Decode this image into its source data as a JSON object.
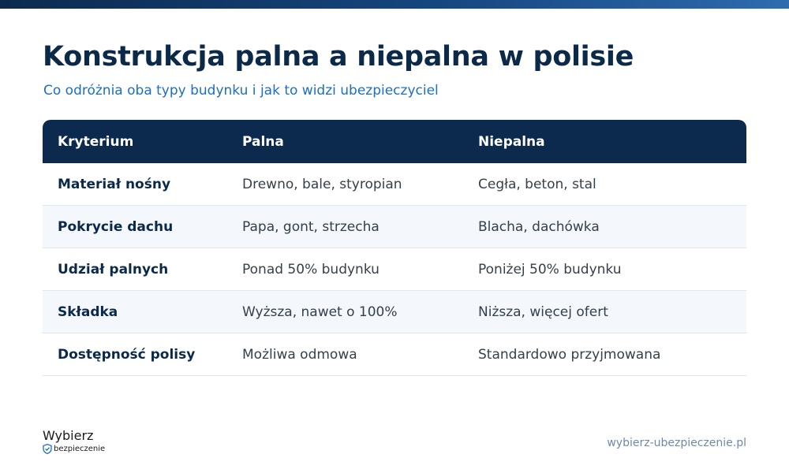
{
  "title": "Konstrukcja palna a niepalna w polisie",
  "subtitle": "Co odróżnia oba typy budynku i jak to widzi ubezpieczyciel",
  "table": {
    "headers": [
      "Kryterium",
      "Palna",
      "Niepalna"
    ],
    "rows": [
      [
        "Materiał nośny",
        "Drewno, bale, styropian",
        "Cegła, beton, stal"
      ],
      [
        "Pokrycie dachu",
        "Papa, gont, strzecha",
        "Blacha, dachówka"
      ],
      [
        "Udział palnych",
        "Ponad 50% budynku",
        "Poniżej 50% budynku"
      ],
      [
        "Składka",
        "Wyższa, nawet o 100%",
        "Niższa, więcej ofert"
      ],
      [
        "Dostępność polisy",
        "Możliwa odmowa",
        "Standardowo przyjmowana"
      ]
    ]
  },
  "logo": {
    "top": "Wybierz",
    "bottom": "bezpieczenie",
    "icon": "shield-icon"
  },
  "footer": {
    "url": "wybierz-ubezpieczenie.pl"
  },
  "colors": {
    "header_bg": "#0b2a4e",
    "accent": "#1c6fc0",
    "title": "#0b2a4a"
  }
}
